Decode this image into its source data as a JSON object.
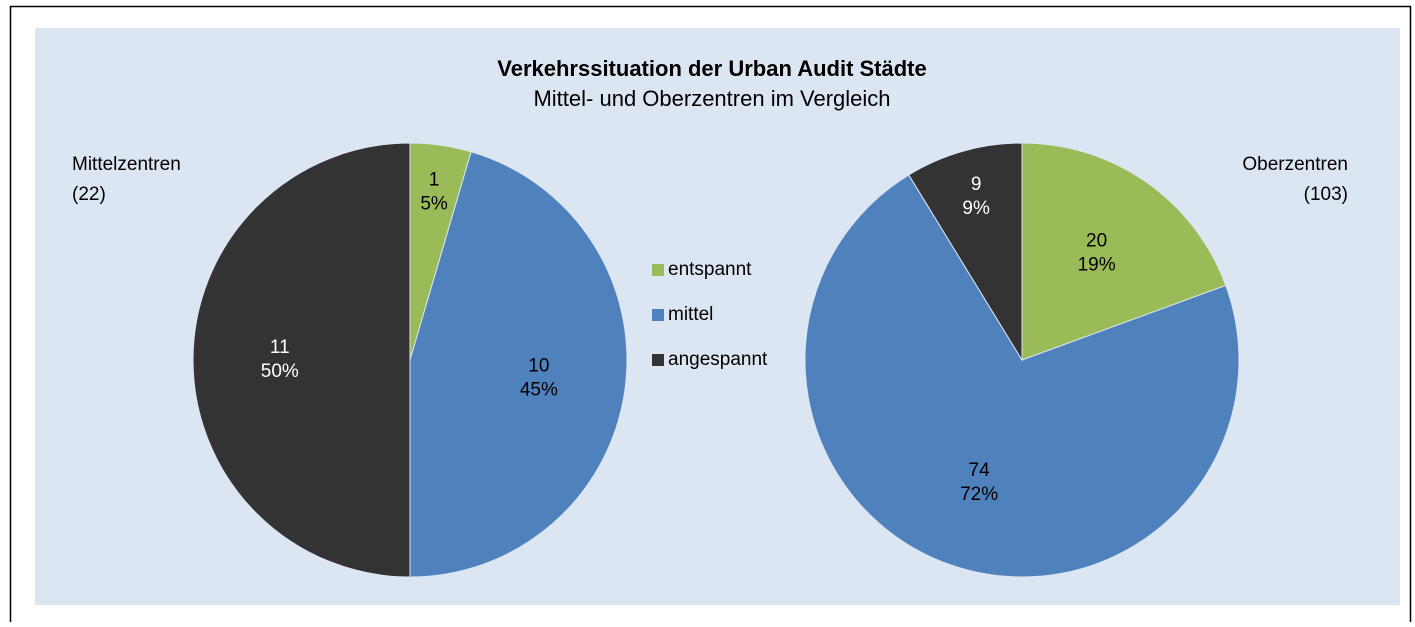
{
  "title": "Verkehrssituation der Urban Audit Städte",
  "subtitle": "Mittel- und Oberzentren im Vergleich",
  "categories": [
    "entspannt",
    "mittel",
    "angespannt"
  ],
  "colors": [
    "#9bbb59",
    "#4f81bd",
    "#333333"
  ],
  "chart_data": [
    {
      "type": "pie",
      "label": "Mittelzentren",
      "n": {
        "value": 22,
        "label": "(22)"
      },
      "values": [
        1,
        10,
        11
      ],
      "percents": [
        5,
        45,
        50
      ],
      "percent_labels": [
        "5%",
        "45%",
        "50%"
      ]
    },
    {
      "type": "pie",
      "label": "Oberzentren",
      "n": {
        "value": 103,
        "label": "(103)"
      },
      "values": [
        20,
        74,
        9
      ],
      "percents": [
        19,
        72,
        9
      ],
      "percent_labels": [
        "19%",
        "72%",
        "9%"
      ]
    }
  ]
}
